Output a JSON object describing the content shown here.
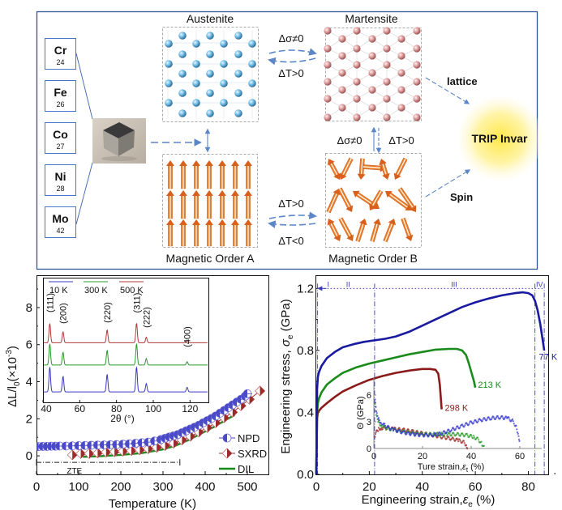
{
  "schematic": {
    "elements": [
      {
        "symbol": "Cr",
        "number": "24"
      },
      {
        "symbol": "Fe",
        "number": "26"
      },
      {
        "symbol": "Co",
        "number": "27"
      },
      {
        "symbol": "Ni",
        "number": "28"
      },
      {
        "symbol": "Mo",
        "number": "42"
      }
    ],
    "austenite_label": "Austenite",
    "martensite_label": "Martensite",
    "magnetic_a_label": "Magnetic Order A",
    "magnetic_b_label": "Magnetic Order B",
    "top_arrow_upper": "Δσ≠0",
    "top_arrow_lower": "ΔT>0",
    "vertical_left": "Δσ≠0",
    "vertical_right": "ΔT>0",
    "bottom_arrow_upper": "ΔT>0",
    "bottom_arrow_lower": "ΔT<0",
    "lattice_label": "lattice",
    "spin_label": "Spin",
    "result_label": "TRIP Invar",
    "colors": {
      "frame": "#2f5597",
      "arrow": "#5b86c8",
      "austenite_atom": "#6fb7e0",
      "martensite_atom": "#d99a9a",
      "spin": "#e8782a",
      "glow": "#fff176"
    }
  },
  "chart_data": [
    {
      "type": "scatter",
      "title": "",
      "xlabel": "Temperature (K)",
      "ylabel": "ΔL/l0(×10^-3)",
      "ylabel_main": "ΔL/l",
      "ylabel_sub": "0",
      "ylabel_tail": "(×10",
      "ylabel_sup": "-3",
      "ylabel_close": ")",
      "xlim": [
        0,
        550
      ],
      "ylim": [
        -1,
        9.7
      ],
      "xticks": [
        0,
        100,
        200,
        300,
        400,
        500
      ],
      "yticks": [
        0,
        2,
        4,
        6,
        8
      ],
      "legend_position": "bottom-right",
      "annotation": "ZTE",
      "zte_range": [
        0,
        340
      ],
      "zte_level": -0.35,
      "series": [
        {
          "name": "NPD",
          "color": "#4a4ac8",
          "marker": "half-filled-circle",
          "x": [
            5,
            15,
            25,
            35,
            45,
            55,
            70,
            85,
            100,
            115,
            130,
            145,
            160,
            175,
            190,
            205,
            220,
            235,
            250,
            265,
            280,
            295,
            305,
            315,
            325,
            335,
            345,
            355,
            365,
            375,
            385,
            395,
            405,
            415,
            425,
            435,
            445,
            455,
            465,
            475,
            485,
            495,
            500
          ],
          "y": [
            0.5,
            0.51,
            0.51,
            0.52,
            0.52,
            0.53,
            0.53,
            0.54,
            0.55,
            0.56,
            0.57,
            0.58,
            0.59,
            0.6,
            0.61,
            0.63,
            0.65,
            0.68,
            0.71,
            0.74,
            0.8,
            0.88,
            0.95,
            1.02,
            1.08,
            1.15,
            1.25,
            1.35,
            1.45,
            1.55,
            1.65,
            1.78,
            1.9,
            2.02,
            2.15,
            2.3,
            2.45,
            2.6,
            2.75,
            2.9,
            3.05,
            3.22,
            3.35
          ]
        },
        {
          "name": "SXRD",
          "color": "#9b2a2a",
          "marker": "half-filled-diamond",
          "x": [
            85,
            105,
            125,
            145,
            165,
            185,
            205,
            225,
            245,
            265,
            285,
            305,
            325,
            345,
            365,
            385,
            405,
            425,
            445,
            465,
            485,
            505,
            530
          ],
          "y": [
            0.05,
            0.12,
            0.12,
            0.15,
            0.2,
            0.22,
            0.25,
            0.28,
            0.32,
            0.38,
            0.45,
            0.55,
            0.68,
            0.85,
            1.05,
            1.28,
            1.52,
            1.78,
            2.05,
            2.35,
            2.7,
            3.05,
            3.5
          ]
        },
        {
          "name": "DIL",
          "color": "#1a8a1a",
          "marker": "line",
          "x": [
            110,
            150,
            200,
            250,
            300,
            330,
            360,
            390,
            420,
            450,
            470
          ],
          "y": [
            -0.05,
            -0.02,
            0.05,
            0.15,
            0.35,
            0.55,
            0.85,
            1.2,
            1.55,
            1.95,
            2.2
          ]
        }
      ]
    },
    {
      "type": "line",
      "title": "",
      "xlabel": "2θ (°)",
      "ylabel": "",
      "xlim": [
        40,
        130
      ],
      "xticks": [
        40,
        60,
        80,
        100,
        120
      ],
      "legend_position": "top-left",
      "peak_labels": [
        {
          "hkl": "(111)",
          "two_theta": 43.7
        },
        {
          "hkl": "(200)",
          "two_theta": 50.9
        },
        {
          "hkl": "(220)",
          "two_theta": 74.9
        },
        {
          "hkl": "(311)",
          "two_theta": 90.9
        },
        {
          "hkl": "(222)",
          "two_theta": 96.2
        },
        {
          "hkl": "(400)",
          "two_theta": 118.4
        }
      ],
      "series": [
        {
          "name": "10 K",
          "color": "#3a3ac0",
          "baseline": 3.45,
          "peak_heights": [
            1.35,
            0.85,
            0.95,
            1.35,
            0.45,
            0.25
          ]
        },
        {
          "name": "300 K",
          "color": "#2a9a2a",
          "baseline": 4.9,
          "peak_heights": [
            1.15,
            0.7,
            0.8,
            1.15,
            0.35,
            0.18
          ]
        },
        {
          "name": "500 K",
          "color": "#b03a3a",
          "baseline": 6.1,
          "peak_heights": [
            1.05,
            0.6,
            0.7,
            1.05,
            0.3,
            0.15
          ]
        }
      ]
    },
    {
      "type": "line",
      "title": "",
      "xlabel": "Engineering strain, εe (%)",
      "xlabel_main": "Engineering strain,",
      "xlabel_sym": "ε",
      "xlabel_sub": "e",
      "xlabel_tail": " (%)",
      "ylabel": "Engineering stress, σe (GPa)",
      "ylabel_main": "Engineering stress, ",
      "ylabel_sym": "σ",
      "ylabel_sub": "e",
      "ylabel_tail": " (GPa)",
      "xlim": [
        0,
        87.5
      ],
      "ylim": [
        0,
        1.28
      ],
      "xticks": [
        0,
        20,
        40,
        60,
        80
      ],
      "yticks": [
        0.0,
        0.4,
        0.8,
        1.2
      ],
      "ytick_labels": [
        "0.0",
        "0.4",
        "0.8",
        "1.2"
      ],
      "stage_labels": [
        "I",
        "II",
        "III",
        "IV"
      ],
      "stage_boundaries": [
        0.5,
        22,
        82.5,
        86
      ],
      "stage_level": 1.2,
      "series": [
        {
          "name": "77 K",
          "color": "#1a1aa0",
          "x": [
            0,
            0.3,
            0.6,
            1,
            2,
            4,
            7,
            10,
            14,
            18,
            22,
            26,
            30,
            35,
            40,
            45,
            50,
            55,
            60,
            65,
            70,
            75,
            78,
            80,
            81.5,
            82.5,
            83.5,
            84.5,
            85.3,
            86
          ],
          "y": [
            0,
            0.55,
            0.63,
            0.66,
            0.7,
            0.75,
            0.79,
            0.82,
            0.84,
            0.855,
            0.865,
            0.875,
            0.89,
            0.92,
            0.96,
            1.0,
            1.04,
            1.08,
            1.11,
            1.135,
            1.155,
            1.17,
            1.175,
            1.17,
            1.155,
            1.12,
            1.06,
            0.97,
            0.88,
            0.8
          ]
        },
        {
          "name": "213 K",
          "color": "#1a8a1a",
          "x": [
            0,
            0.3,
            0.6,
            1,
            2,
            4,
            7,
            10,
            15,
            20,
            25,
            30,
            35,
            40,
            45,
            50,
            53,
            55,
            56.5,
            57.5,
            58.5,
            59.5,
            60
          ],
          "y": [
            0,
            0.4,
            0.46,
            0.49,
            0.53,
            0.58,
            0.62,
            0.655,
            0.69,
            0.715,
            0.735,
            0.755,
            0.775,
            0.79,
            0.805,
            0.81,
            0.81,
            0.8,
            0.77,
            0.72,
            0.66,
            0.6,
            0.56
          ]
        },
        {
          "name": "298 K",
          "color": "#8b1a1a",
          "x": [
            0,
            0.3,
            0.6,
            1,
            2,
            4,
            7,
            10,
            15,
            20,
            25,
            30,
            35,
            40,
            43,
            45,
            46,
            46.6,
            47,
            47.3
          ],
          "y": [
            0,
            0.36,
            0.4,
            0.41,
            0.43,
            0.46,
            0.5,
            0.535,
            0.575,
            0.61,
            0.635,
            0.655,
            0.67,
            0.68,
            0.68,
            0.675,
            0.65,
            0.58,
            0.49,
            0.42
          ]
        }
      ]
    },
    {
      "type": "scatter",
      "title": "",
      "xlabel": "Ture strain, εt (%)",
      "xlabel_main": "Ture strain,",
      "xlabel_sym": "ε",
      "xlabel_sub": "t",
      "xlabel_tail": " (%)",
      "ylabel": "Θ (GPa)",
      "xlim": [
        0,
        69
      ],
      "ylim": [
        0,
        8
      ],
      "xticks": [
        0,
        20,
        40,
        60
      ],
      "yticks": [
        0,
        3,
        6
      ],
      "series": [
        {
          "name": "77 K",
          "color": "#3a3ad0",
          "x": [
            0.5,
            1,
            2,
            3,
            5,
            8,
            12,
            16,
            20,
            24,
            28,
            32,
            36,
            40,
            44,
            48,
            52,
            55,
            57,
            58.5,
            59.5,
            60
          ],
          "y": [
            5.5,
            4.0,
            3.3,
            2.9,
            2.5,
            2.1,
            1.8,
            1.6,
            1.5,
            1.5,
            1.7,
            2.1,
            2.5,
            2.9,
            3.2,
            3.4,
            3.5,
            3.4,
            3.1,
            2.5,
            1.5,
            0.6
          ]
        },
        {
          "name": "213 K",
          "color": "#2a9a2a",
          "x": [
            0.5,
            1,
            2,
            3,
            5,
            8,
            12,
            16,
            20,
            25,
            30,
            34,
            38,
            41,
            43,
            44.5,
            45.5
          ],
          "y": [
            5.0,
            3.6,
            3.0,
            2.6,
            2.3,
            2.1,
            1.9,
            1.7,
            1.6,
            1.6,
            1.6,
            1.6,
            1.5,
            1.3,
            1.0,
            0.5,
            0
          ]
        },
        {
          "name": "298 K",
          "color": "#a02a2a",
          "x": [
            0.5,
            1,
            2,
            3,
            5,
            8,
            12,
            16,
            20,
            24,
            28,
            32,
            35,
            37,
            38,
            38.6
          ],
          "y": [
            1.3,
            1.8,
            2.2,
            2.3,
            2.3,
            2.2,
            2.1,
            1.9,
            1.7,
            1.5,
            1.3,
            1.1,
            0.9,
            0.7,
            0.4,
            0
          ]
        }
      ]
    }
  ]
}
